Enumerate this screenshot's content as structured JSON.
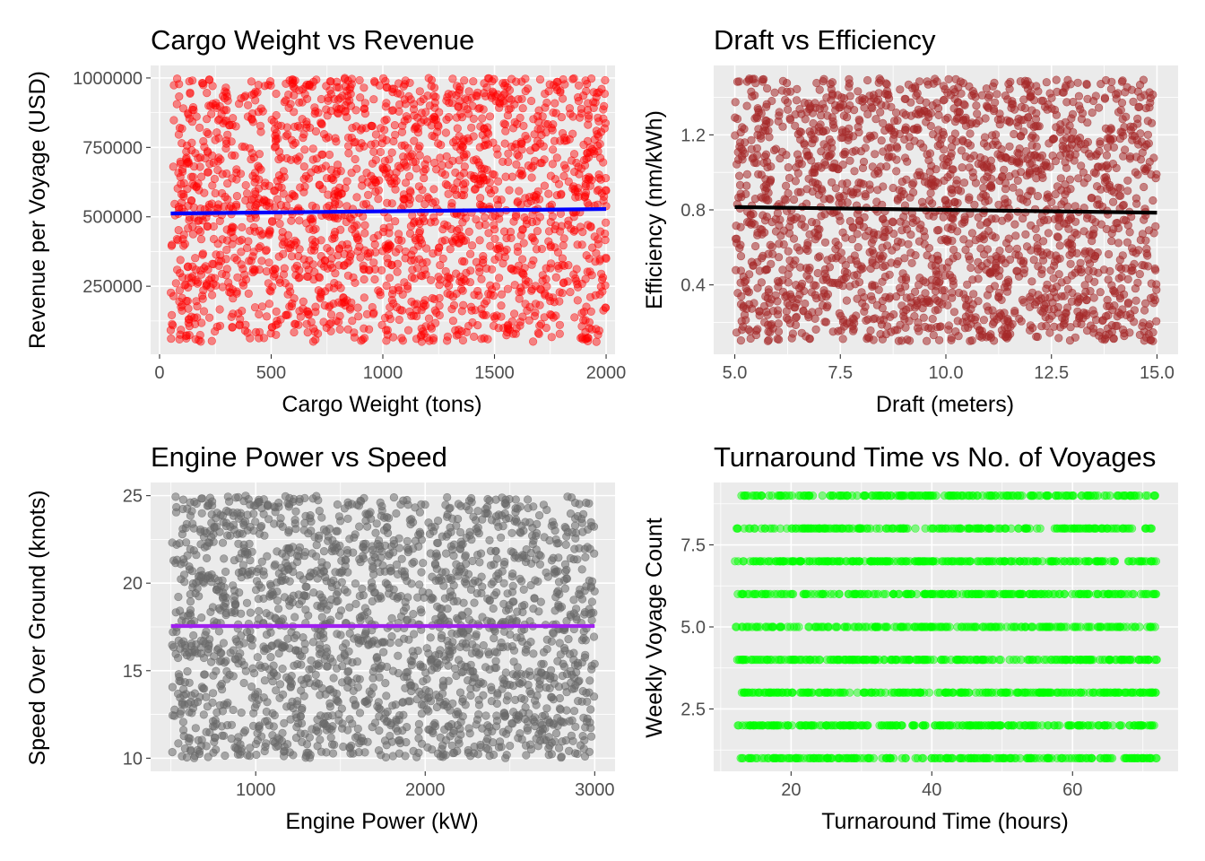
{
  "chart_data": [
    {
      "type": "scatter",
      "title": "Cargo Weight vs Revenue",
      "xlabel": "Cargo Weight (tons)",
      "ylabel": "Revenue per Voyage (USD)",
      "xlim": [
        -40,
        2040
      ],
      "ylim": [
        5000,
        1045000
      ],
      "xticks": [
        0,
        500,
        1000,
        1500,
        2000
      ],
      "xtick_labels": [
        "0",
        "500",
        "1000",
        "1500",
        "2000"
      ],
      "yticks": [
        250000,
        500000,
        750000,
        1000000
      ],
      "ytick_labels": [
        "250000",
        "500000",
        "750000",
        "1000000"
      ],
      "point_color": "#ff0000",
      "point_alpha": 0.45,
      "points": {
        "n": 2000,
        "x_range": [
          50,
          2000
        ],
        "y_range": [
          50000,
          1000000
        ],
        "seed": 11
      },
      "trend": {
        "color": "#0000ff",
        "x": [
          50,
          2000
        ],
        "y": [
          512000,
          528000
        ]
      },
      "grid": true,
      "background": "#ebebeb"
    },
    {
      "type": "scatter",
      "title": "Draft vs Efficiency",
      "xlabel": "Draft (meters)",
      "ylabel": "Efficiency (nm/kWh)",
      "xlim": [
        4.5,
        15.5
      ],
      "ylim": [
        0.03,
        1.57
      ],
      "xticks": [
        5.0,
        7.5,
        10.0,
        12.5,
        15.0
      ],
      "xtick_labels": [
        "5.0",
        "7.5",
        "10.0",
        "12.5",
        "15.0"
      ],
      "yticks": [
        0.4,
        0.8,
        1.2
      ],
      "ytick_labels": [
        "0.4",
        "0.8",
        "1.2"
      ],
      "point_color": "#a52a2a",
      "point_alpha": 0.55,
      "points": {
        "n": 2000,
        "x_range": [
          5.0,
          15.0
        ],
        "y_range": [
          0.1,
          1.5
        ],
        "seed": 23
      },
      "trend": {
        "color": "#000000",
        "x": [
          5.0,
          15.0
        ],
        "y": [
          0.815,
          0.785
        ]
      },
      "grid": true,
      "background": "#ebebeb"
    },
    {
      "type": "scatter",
      "title": "Engine Power vs Speed",
      "xlabel": "Engine Power (kW)",
      "ylabel": "Speed Over Ground (knots)",
      "xlim": [
        380,
        3120
      ],
      "ylim": [
        9.25,
        25.75
      ],
      "xticks": [
        1000,
        2000,
        3000
      ],
      "xtick_labels": [
        "1000",
        "2000",
        "3000"
      ],
      "yticks": [
        10,
        15,
        20,
        25
      ],
      "ytick_labels": [
        "10",
        "15",
        "20",
        "25"
      ],
      "point_color": "#696969",
      "point_alpha": 0.55,
      "points": {
        "n": 2000,
        "x_range": [
          500,
          3000
        ],
        "y_range": [
          10,
          25
        ],
        "seed": 37
      },
      "trend": {
        "color": "#a020f0",
        "x": [
          500,
          3000
        ],
        "y": [
          17.55,
          17.55
        ]
      },
      "grid": true,
      "background": "#ebebeb"
    },
    {
      "type": "scatter",
      "title": "Turnaround Time vs No. of Voyages",
      "xlabel": "Turnaround Time (hours)",
      "ylabel": "Weekly Voyage Count",
      "xlim": [
        9,
        75
      ],
      "ylim": [
        0.6,
        9.4
      ],
      "xticks": [
        20,
        40,
        60
      ],
      "xtick_labels": [
        "20",
        "40",
        "60"
      ],
      "yticks": [
        2.5,
        5.0,
        7.5
      ],
      "ytick_labels": [
        "2.5",
        "5.0",
        "7.5"
      ],
      "point_color": "#00ff00",
      "point_alpha": 0.45,
      "points": {
        "n": 2000,
        "x_range": [
          12,
          72
        ],
        "y_levels": [
          1,
          2,
          3,
          4,
          5,
          6,
          7,
          8,
          9
        ],
        "seed": 53
      },
      "trend": null,
      "grid": true,
      "background": "#ebebeb"
    }
  ]
}
